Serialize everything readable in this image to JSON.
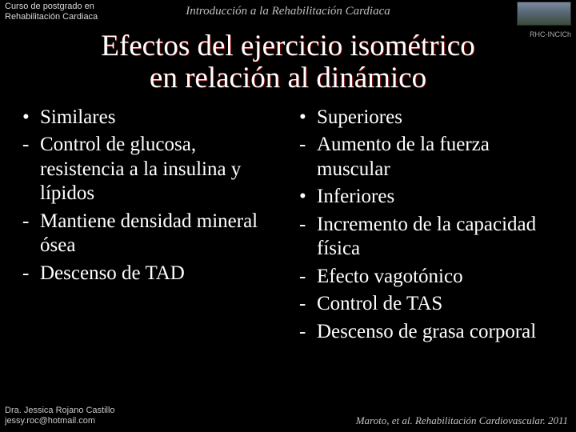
{
  "header": {
    "left_line1": "Curso de postgrado en",
    "left_line2": "Rehabilitación Cardiaca",
    "center": "Introducción a la Rehabilitación Cardiaca",
    "institution": "RHC-INCICh"
  },
  "title_line1": "Efectos del ejercicio isométrico",
  "title_line2": "en relación al dinámico",
  "leftCol": [
    {
      "marker": "•",
      "text": "Similares"
    },
    {
      "marker": "-",
      "text": "Control de glucosa, resistencia a la insulina y lípidos"
    },
    {
      "marker": "-",
      "text": "Mantiene densidad mineral ósea"
    },
    {
      "marker": "-",
      "text": "Descenso de TAD"
    }
  ],
  "rightCol": [
    {
      "marker": "•",
      "text": "Superiores"
    },
    {
      "marker": "-",
      "text": "Aumento de la fuerza muscular"
    },
    {
      "marker": "•",
      "text": "Inferiores"
    },
    {
      "marker": "-",
      "text": "Incremento de la capacidad física"
    },
    {
      "marker": "-",
      "text": "Efecto vagotónico"
    },
    {
      "marker": "-",
      "text": "Control de TAS"
    },
    {
      "marker": "-",
      "text": "Descenso de grasa corporal"
    }
  ],
  "footer": {
    "author": "Dra. Jessica Rojano Castillo",
    "email": "jessy.roc@hotmail.com",
    "citation": "Maroto, et al. Rehabilitación Cardiovascular. 2011"
  },
  "style": {
    "background": "#000000",
    "text_color": "#ffffff",
    "title_fontsize_pt": 28,
    "body_fontsize_pt": 19,
    "header_fontsize_pt": 8,
    "footer_fontsize_pt": 8,
    "title_shadow_color": "#800000",
    "muted_color": "#bfbfbf"
  }
}
